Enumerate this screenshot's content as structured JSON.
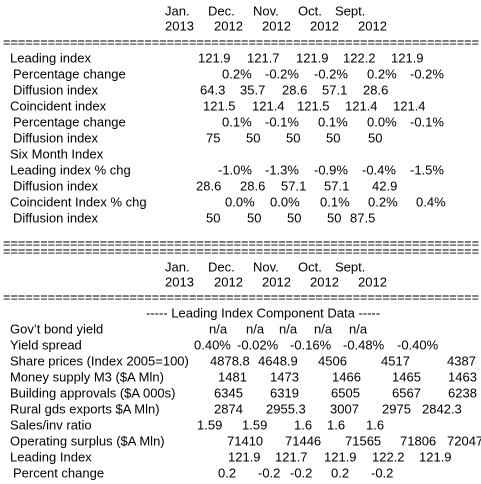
{
  "header": {
    "months": [
      "Jan.",
      "Dec.",
      "Nov.",
      "Oct.",
      "Sept."
    ],
    "years": [
      "2013",
      "2012",
      "2012",
      "2012",
      "2012"
    ]
  },
  "separator": "================================================================",
  "block1": {
    "rows": [
      {
        "label": "Leading index",
        "values": [
          "121.9",
          "121.7",
          "121.9",
          "122.2",
          "121.9"
        ]
      },
      {
        "label": "Percentage change",
        "values": [
          "0.2%",
          "-0.2%",
          "-0.2%",
          "0.2%",
          "-0.2%"
        ]
      },
      {
        "label": "Diffusion index",
        "values": [
          "64.3",
          "35.7",
          "28.6",
          "57.1",
          "28.6"
        ]
      },
      {
        "label": "Coincident index",
        "values": [
          "121.5",
          "121.4",
          "121.5",
          "121.4",
          "121.4"
        ]
      },
      {
        "label": "Percentage change",
        "values": [
          "0.1%",
          "-0.1%",
          "0.1%",
          "0.0%",
          "-0.1%"
        ]
      },
      {
        "label": "Diffusion index",
        "values": [
          "75",
          "50",
          "50",
          "50",
          "50"
        ]
      },
      {
        "label": "Six Month Index"
      },
      {
        "label": "Leading index % chg",
        "values": [
          "-1.0%",
          "-1.3%",
          "-0.9%",
          "-0.4%",
          "-1.5%"
        ]
      },
      {
        "label": "Diffusion index",
        "values": [
          "28.6",
          "28.6",
          "57.1",
          "57.1",
          "42.9"
        ]
      },
      {
        "label": "Coincident Index % chg",
        "values": [
          "0.0%",
          "0.0%",
          "0.1%",
          "0.2%",
          "0.4%"
        ]
      },
      {
        "label": "Diffusion index",
        "values": [
          "50",
          "50",
          "50",
          "50",
          "87.5"
        ]
      }
    ]
  },
  "block2": {
    "title": "----- Leading Index Component Data -----",
    "rows": [
      {
        "label": "Gov’t bond yield",
        "values": [
          "n/a",
          "n/a",
          "n/a",
          "n/a",
          "n/a"
        ]
      },
      {
        "label": "Yield spread",
        "values": [
          "0.40%",
          "-0.02%",
          "-0.16%",
          "-0.48%",
          "-0.40%"
        ]
      },
      {
        "label": "Share prices (Index 2005=100)",
        "values": [
          "4878.8",
          "4648.9",
          "4506",
          "4517",
          "4387"
        ]
      },
      {
        "label": "Money supply M3 ($A Mln)",
        "values": [
          "1481",
          "1473",
          "1466",
          "1465",
          "1463"
        ]
      },
      {
        "label": "Building approvals ($A 000s)",
        "values": [
          "6345",
          "6319",
          "6505",
          "6567",
          "6238"
        ]
      },
      {
        "label": "Rural gds exports $A Mln)",
        "values": [
          "2874",
          "2955.3",
          "3007",
          "2975",
          "2842.3"
        ]
      },
      {
        "label": "Sales/inv ratio",
        "values": [
          "1.59",
          "1.59",
          "1.6",
          "1.6",
          "1.6"
        ]
      },
      {
        "label": "Operating surplus ($A Mln)",
        "values": [
          "71410",
          "71446",
          "71565",
          "71806",
          "72047"
        ]
      },
      {
        "label": "Leading Index",
        "values": [
          "121.9",
          "121.7",
          "121.9",
          "122.2",
          "121.9"
        ]
      },
      {
        "label": "Percent change",
        "values": [
          "0.2",
          "-0.2",
          "-0.2",
          "0.2",
          "-0.2"
        ]
      }
    ]
  }
}
